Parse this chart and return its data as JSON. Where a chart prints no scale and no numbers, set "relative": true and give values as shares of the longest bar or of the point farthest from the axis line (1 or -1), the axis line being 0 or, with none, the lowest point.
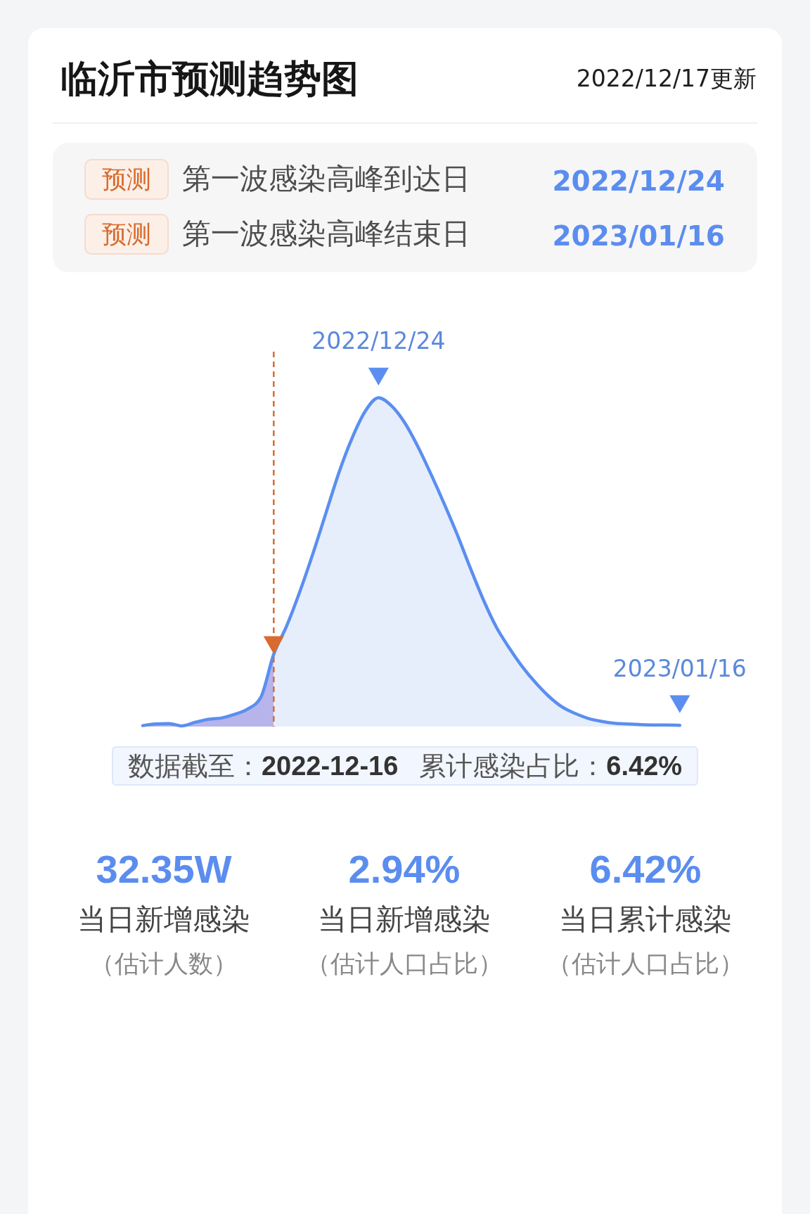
{
  "chart_data": {
    "type": "line",
    "title": "临沂市预测趋势图",
    "subtitle": "2022/12/17更新",
    "relative": true,
    "categories": [
      null,
      null,
      null,
      null,
      null,
      null,
      null,
      null,
      null,
      null,
      null,
      null,
      null,
      null,
      null,
      null,
      null,
      null,
      null,
      null,
      null,
      null,
      null,
      null,
      null,
      null,
      null,
      null,
      null,
      null,
      null,
      null,
      null,
      null,
      null,
      null,
      null,
      null,
      null,
      null,
      null,
      null
    ],
    "series": [
      {
        "type": "area",
        "color": "#b6b4eb",
        "values": [
          0.003,
          0.008,
          0.009,
          0.002,
          0.013,
          0.022,
          0.026,
          0.037,
          0.053,
          0.088,
          0.22,
          null,
          null,
          null,
          null,
          null,
          null,
          null,
          null,
          null,
          null,
          null,
          null,
          null,
          null,
          null,
          null,
          null,
          null,
          null,
          null,
          null,
          null,
          null,
          null,
          null,
          null,
          null,
          null,
          null,
          null,
          null
        ]
      },
      {
        "type": "area",
        "color": "#e6eefc",
        "values": [
          null,
          null,
          null,
          null,
          null,
          null,
          null,
          null,
          null,
          null,
          0.22,
          0.307,
          0.411,
          0.527,
          0.651,
          0.775,
          0.879,
          0.96,
          1,
          0.975,
          0.924,
          0.852,
          0.768,
          0.679,
          0.585,
          0.483,
          0.386,
          0.302,
          0.238,
          0.181,
          0.133,
          0.092,
          0.06,
          0.04,
          0.025,
          0.016,
          0.01,
          0.008,
          0.006,
          0.005,
          0.005,
          0.004
        ]
      },
      {
        "color": "#5b8ef0",
        "values": [
          0.003,
          0.008,
          0.009,
          0.002,
          0.013,
          0.022,
          0.026,
          0.037,
          0.053,
          0.088,
          0.22,
          0.307,
          0.411,
          0.527,
          0.651,
          0.775,
          0.879,
          0.96,
          1,
          0.975,
          0.924,
          0.852,
          0.768,
          0.679,
          0.585,
          0.483,
          0.386,
          0.302,
          0.238,
          0.181,
          0.133,
          0.092,
          0.06,
          0.04,
          0.025,
          0.016,
          0.01,
          0.008,
          0.006,
          0.005,
          0.005,
          0.004
        ]
      }
    ],
    "ref_lines": [
      {
        "axis": "x",
        "color": "#d96b2e",
        "line_style": "dashed"
      }
    ],
    "annotations": [
      "预测",
      "第一波感染高峰到达日",
      "2022/12/24",
      "预测",
      "第一波感染高峰结束日",
      "2023/01/16",
      {
        "text": "2022/12/24",
        "y": 1
      },
      {
        "text": "2023/01/16",
        "y": 0.004
      },
      "数据截至：",
      "2022-12-16",
      "累计感染占比：",
      "6.42%",
      "32.35W",
      "当日新增感染",
      "（估计人数）",
      "2.94%",
      "当日新增感染",
      "（估计人口占比）",
      "6.42%",
      "当日累计感染",
      "（估计人口占比）"
    ]
  }
}
